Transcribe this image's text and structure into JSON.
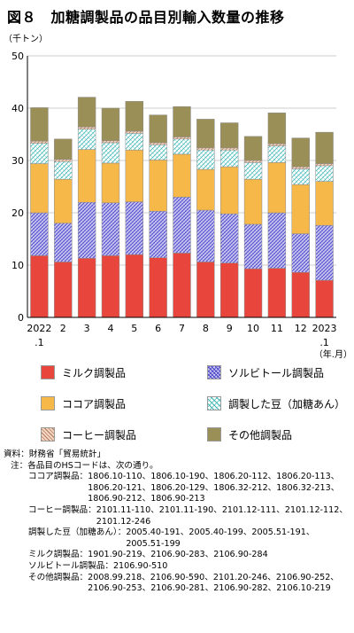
{
  "title": "図８　加糖調製品の品目別輸入数量の推移",
  "colors": {
    "milk": "#e8463c",
    "sorbitol_bg": "#c9c6f0",
    "sorbitol_fg": "#4a44c8",
    "cocoa": "#f7b84a",
    "beans_bg": "#ffffff",
    "beans_fg": "#3db6b6",
    "coffee_bg": "#f4d6c2",
    "coffee_fg": "#b0775a",
    "other": "#9b8f58"
  },
  "chart_data": {
    "type": "bar",
    "stacked": true,
    "unit_label": "（千トン）",
    "xlabel": "（年.月）",
    "ylim": [
      0,
      50
    ],
    "yticks": [
      "0",
      "10",
      "20",
      "30",
      "40",
      "50"
    ],
    "grid": true,
    "categories": [
      "2022.1",
      "2",
      "3",
      "4",
      "5",
      "6",
      "7",
      "8",
      "9",
      "10",
      "11",
      "12",
      "2023.1"
    ],
    "xtick_labels": [
      "2022\n.1",
      "2",
      "3",
      "4",
      "5",
      "6",
      "7",
      "8",
      "9",
      "10",
      "11",
      "12",
      "2023\n.1"
    ],
    "series": [
      {
        "name": "ミルク調製品",
        "key": "milk",
        "values": [
          11.8,
          10.6,
          11.3,
          11.8,
          12.0,
          11.4,
          12.3,
          10.6,
          10.4,
          9.3,
          9.4,
          8.6,
          7.1
        ]
      },
      {
        "name": "ソルビトール調製品",
        "key": "sorbitol",
        "values": [
          8.2,
          7.4,
          10.7,
          10.1,
          10.1,
          8.9,
          10.7,
          9.9,
          9.4,
          8.5,
          10.6,
          7.4,
          10.5
        ]
      },
      {
        "name": "ココア調製品",
        "key": "cocoa",
        "values": [
          9.4,
          8.4,
          10.1,
          7.6,
          9.9,
          9.8,
          8.2,
          7.8,
          9.0,
          8.6,
          9.6,
          9.4,
          8.4
        ]
      },
      {
        "name": "調製した豆（加糖あん）",
        "key": "beans",
        "values": [
          3.9,
          3.4,
          3.9,
          3.9,
          3.2,
          2.9,
          2.9,
          3.7,
          3.2,
          3.2,
          3.2,
          3.0,
          3.0
        ]
      },
      {
        "name": "コーヒー調製品",
        "key": "coffee",
        "values": [
          0.4,
          0.4,
          0.4,
          0.4,
          0.4,
          0.4,
          0.4,
          0.4,
          0.4,
          0.4,
          0.4,
          0.4,
          0.4
        ]
      },
      {
        "name": "その他調製品",
        "key": "other",
        "values": [
          6.4,
          3.9,
          5.7,
          6.2,
          5.7,
          5.3,
          5.8,
          5.5,
          4.8,
          4.6,
          5.9,
          5.5,
          6.0
        ]
      }
    ]
  },
  "legend": [
    {
      "key": "milk",
      "label": "ミルク調製品"
    },
    {
      "key": "sorbitol",
      "label": "ソルビトール調製品"
    },
    {
      "key": "cocoa",
      "label": "ココア調製品"
    },
    {
      "key": "beans",
      "label": "調製した豆（加糖あん）"
    },
    {
      "key": "coffee",
      "label": "コーヒー調製品"
    },
    {
      "key": "other",
      "label": "その他調製品"
    }
  ],
  "notes": {
    "source_head": "資料：",
    "source_text": "財務省「貿易統計」",
    "note_head": "注：",
    "note_text": "各品目のHSコードは、次の通り。",
    "items": [
      {
        "head": "ココア調製品：",
        "text": "1806.10-110、1806.10-190、1806.20-112、1806.20-113、1806.20-121、1806.20-129、1806.32-212、1806.32-213、1806.90-212、1806.90-213"
      },
      {
        "head": "コーヒー調製品：",
        "text": "2101.11-110、2101.11-190、2101.12-111、2101.12-112、2101.12-246"
      },
      {
        "head": "調製した豆（加糖あん）：",
        "text": "2005.40-191、2005.40-199、2005.51-191、2005.51-199"
      },
      {
        "head": "ミルク調製品：",
        "text": "1901.90-219、2106.90-283、2106.90-284"
      },
      {
        "head": "ソルビトール調製品：",
        "text": "2106.90-510"
      },
      {
        "head": "その他調製品：",
        "text": "2008.99.218、2106.90-590、2101.20-246、2106.90-252、2106.90-253、2106.90-281、2106.90-282、2106.10-219"
      }
    ]
  }
}
